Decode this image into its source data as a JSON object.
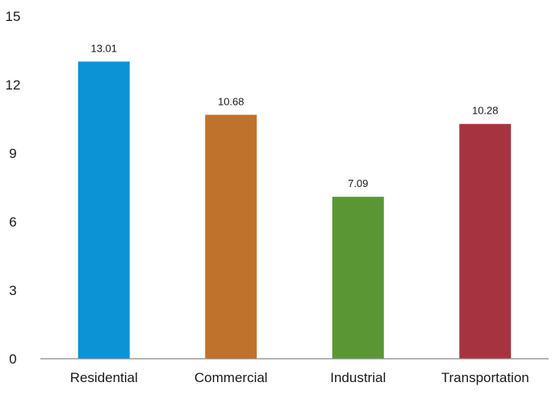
{
  "chart_data": {
    "type": "bar",
    "title": "",
    "xlabel": "",
    "ylabel": "",
    "categories": [
      "Residential",
      "Commercial",
      "Industrial",
      "Transportation"
    ],
    "values": [
      13.01,
      10.68,
      7.09,
      10.28
    ],
    "value_labels": [
      "13.01",
      "10.68",
      "7.09",
      "10.28"
    ],
    "colors": [
      "#0b93d6",
      "#bf722c",
      "#5a9734",
      "#a63440"
    ],
    "ylim": [
      0,
      15
    ],
    "yticks": [
      0,
      3,
      6,
      9,
      12,
      15
    ],
    "ytick_labels": [
      "0",
      "3",
      "6",
      "9",
      "12",
      "15"
    ],
    "grid": false,
    "axis_color": "#888888"
  }
}
